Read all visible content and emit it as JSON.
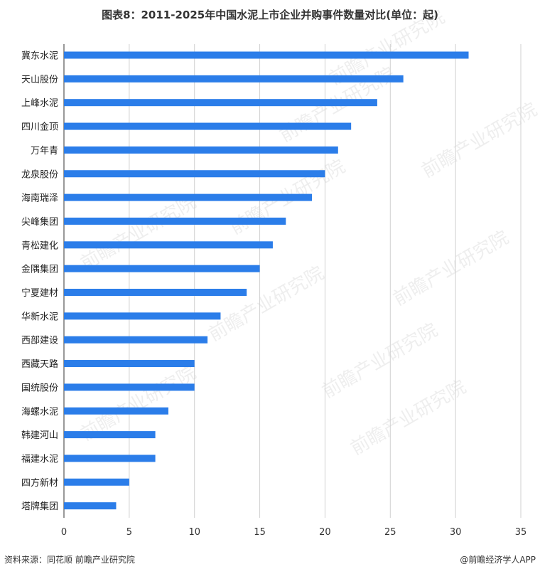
{
  "title": "图表8：2011-2025年中国水泥上市企业并购事件数量对比(单位：起)",
  "footer": {
    "source": "资料来源：同花顺 前瞻产业研究院",
    "brand": "@前瞻经济学人APP"
  },
  "watermark": "前瞻产业研究院",
  "colors": {
    "bar": "#2b7de9",
    "grid": "#d0d0d0",
    "axis": "#333333"
  },
  "chart_data": {
    "type": "bar",
    "orientation": "horizontal",
    "categories": [
      "冀东水泥",
      "天山股份",
      "上峰水泥",
      "四川金顶",
      "万年青",
      "龙泉股份",
      "海南瑞泽",
      "尖峰集团",
      "青松建化",
      "金隅集团",
      "宁夏建材",
      "华新水泥",
      "西部建设",
      "西藏天路",
      "国统股份",
      "海螺水泥",
      "韩建河山",
      "福建水泥",
      "四方新材",
      "塔牌集团"
    ],
    "values": [
      31,
      26,
      24,
      22,
      21,
      20,
      19,
      17,
      16,
      15,
      14,
      12,
      11,
      10,
      10,
      8,
      7,
      7,
      5,
      4
    ],
    "xlim": [
      0,
      35
    ],
    "xticks": [
      "0",
      "5",
      "10",
      "15",
      "20",
      "25",
      "30",
      "35"
    ],
    "grid": true
  }
}
